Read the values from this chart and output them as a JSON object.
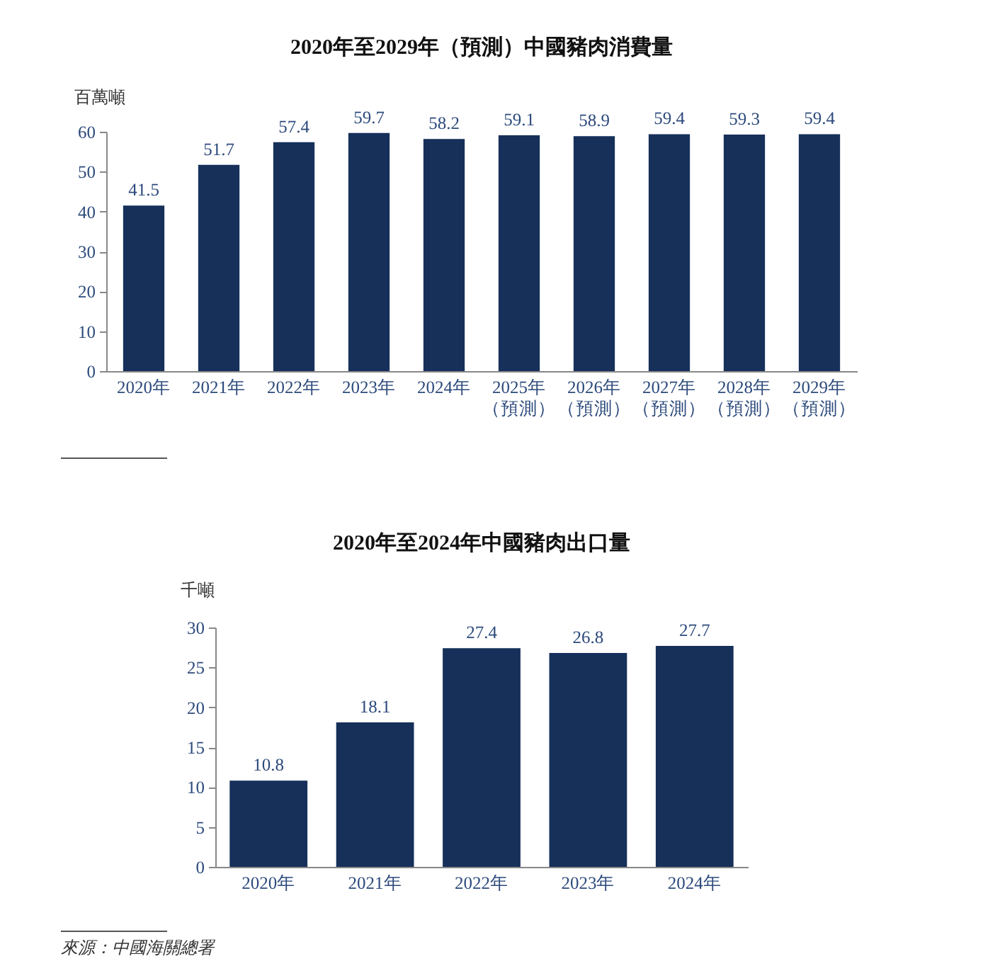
{
  "chart_data": [
    {
      "type": "bar",
      "title": "2020年至2029年（預測）中國豬肉消費量",
      "ylabel": "百萬噸",
      "categories": [
        "2020年",
        "2021年",
        "2022年",
        "2023年",
        "2024年",
        "2025年（預測）",
        "2026年（預測）",
        "2027年（預測）",
        "2028年（預測）",
        "2029年（預測）"
      ],
      "values": [
        41.5,
        51.7,
        57.4,
        59.7,
        58.2,
        59.1,
        58.9,
        59.4,
        59.3,
        59.4
      ],
      "color": "#16305a",
      "ylim": [
        0,
        60
      ],
      "yticks": [
        0,
        10,
        20,
        30,
        40,
        50,
        60
      ],
      "data_labels": true
    },
    {
      "type": "bar",
      "title": "2020年至2024年中國豬肉出口量",
      "ylabel": "千噸",
      "categories": [
        "2020年",
        "2021年",
        "2022年",
        "2023年",
        "2024年"
      ],
      "values": [
        10.8,
        18.1,
        27.4,
        26.8,
        27.7
      ],
      "color": "#16305a",
      "ylim": [
        0,
        30
      ],
      "yticks": [
        0,
        5,
        10,
        15,
        20,
        25,
        30
      ],
      "data_labels": true,
      "annotations": [
        "來源：中國海關總署"
      ]
    }
  ]
}
